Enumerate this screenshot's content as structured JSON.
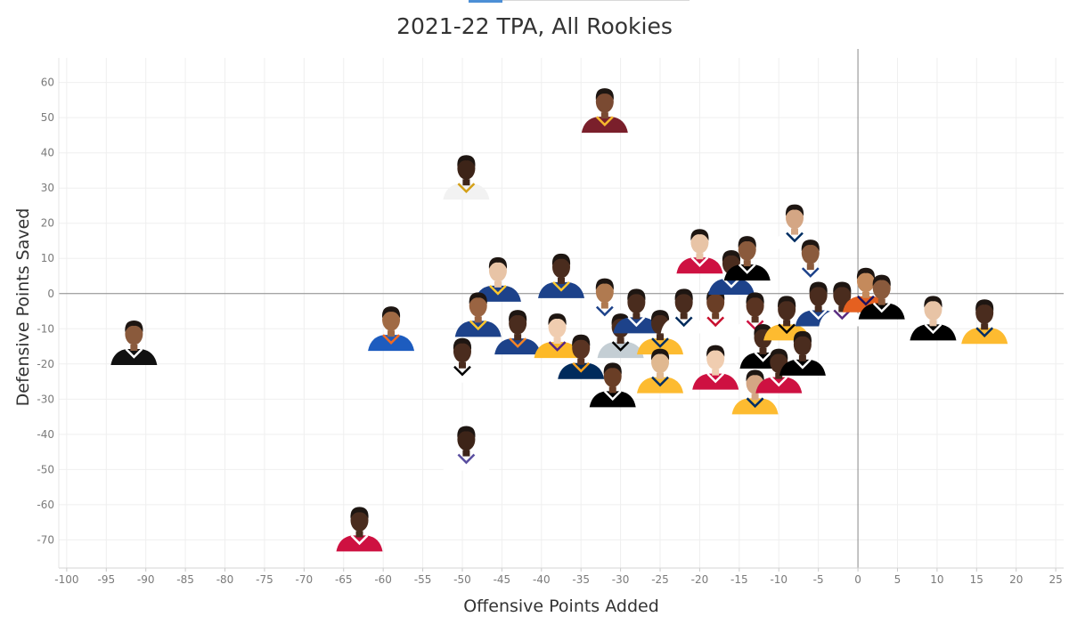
{
  "chart_data": {
    "type": "scatter",
    "title": "2021-22 TPA, All Rookies",
    "xlabel": "Offensive Points Added",
    "ylabel": "Defensive Points Saved",
    "xlim": [
      -101,
      26
    ],
    "ylim": [
      -78,
      67
    ],
    "xticks": [
      -100,
      -95,
      -90,
      -85,
      -80,
      -75,
      -70,
      -65,
      -60,
      -55,
      -50,
      -45,
      -40,
      -35,
      -30,
      -25,
      -20,
      -15,
      -10,
      -5,
      0,
      5,
      10,
      15,
      20,
      25
    ],
    "yticks": [
      -70,
      -60,
      -50,
      -40,
      -30,
      -20,
      -10,
      0,
      10,
      20,
      30,
      40,
      50,
      60
    ],
    "grid": true,
    "reference_lines": {
      "x": 0,
      "y": 0
    },
    "marker": "player headshot",
    "points": [
      {
        "x": -32,
        "y": 50,
        "skin": "#7a4a32",
        "jersey": "#7a1f2b",
        "trim": "#f5b82e"
      },
      {
        "x": -49.5,
        "y": 31,
        "skin": "#3d2418",
        "jersey": "#f2f2f2",
        "trim": "#d4a017"
      },
      {
        "x": -91.5,
        "y": -16,
        "skin": "#8a5a3c",
        "jersey": "#111111",
        "trim": "#ffffff"
      },
      {
        "x": -59,
        "y": -12,
        "skin": "#a06a44",
        "jersey": "#1d5cbf",
        "trim": "#f26a21"
      },
      {
        "x": -49.5,
        "y": -46,
        "skin": "#3d2418",
        "jersey": "#ffffff",
        "trim": "#5a4fa0"
      },
      {
        "x": -63,
        "y": -69,
        "skin": "#4a2c1e",
        "jersey": "#ce1141",
        "trim": "#ffffff"
      },
      {
        "x": -50,
        "y": -21,
        "skin": "#4a2c1e",
        "jersey": "#ffffff",
        "trim": "#000000"
      },
      {
        "x": -45.5,
        "y": 2,
        "skin": "#e8c4a6",
        "jersey": "#1d428a",
        "trim": "#ffc72c"
      },
      {
        "x": -48,
        "y": -8,
        "skin": "#9a6442",
        "jersey": "#1d428a",
        "trim": "#ffc72c"
      },
      {
        "x": -43,
        "y": -13,
        "skin": "#4a2c1e",
        "jersey": "#1d428a",
        "trim": "#f58426"
      },
      {
        "x": -37.5,
        "y": 3,
        "skin": "#4a2c1e",
        "jersey": "#1d428a",
        "trim": "#ffc72c"
      },
      {
        "x": -38,
        "y": -14,
        "skin": "#f0cdb0",
        "jersey": "#fdb927",
        "trim": "#552583"
      },
      {
        "x": -35,
        "y": -20,
        "skin": "#5a3422",
        "jersey": "#002b5c",
        "trim": "#f9a01b"
      },
      {
        "x": -32,
        "y": -4,
        "skin": "#b07a50",
        "jersey": "#ffffff",
        "trim": "#1d428a"
      },
      {
        "x": -30,
        "y": -14,
        "skin": "#4a2c1e",
        "jersey": "#c4ced4",
        "trim": "#000000"
      },
      {
        "x": -31,
        "y": -28,
        "skin": "#6a3e26",
        "jersey": "#000000",
        "trim": "#ffffff"
      },
      {
        "x": -28,
        "y": -7,
        "skin": "#4a2c1e",
        "jersey": "#1d428a",
        "trim": "#ffffff"
      },
      {
        "x": -25,
        "y": -13,
        "skin": "#4a2c1e",
        "jersey": "#fdbb30",
        "trim": "#002d62"
      },
      {
        "x": -25,
        "y": -24,
        "skin": "#e0b890",
        "jersey": "#fdbb30",
        "trim": "#002d62"
      },
      {
        "x": -22,
        "y": -7,
        "skin": "#4a2c1e",
        "jersey": "#ffffff",
        "trim": "#002b5c"
      },
      {
        "x": -20,
        "y": 10,
        "skin": "#e8c4a6",
        "jersey": "#ce1141",
        "trim": "#ffffff"
      },
      {
        "x": -18,
        "y": -23,
        "skin": "#f0cdb0",
        "jersey": "#ce1141",
        "trim": "#ffffff"
      },
      {
        "x": -18,
        "y": -7,
        "skin": "#6a3e26",
        "jersey": "#ffffff",
        "trim": "#c8102e"
      },
      {
        "x": -16,
        "y": 4,
        "skin": "#4a2c1e",
        "jersey": "#1d428a",
        "trim": "#ffffff"
      },
      {
        "x": -14,
        "y": 8,
        "skin": "#8a5a3c",
        "jersey": "#000000",
        "trim": "#ffffff"
      },
      {
        "x": -13,
        "y": -8,
        "skin": "#5a3422",
        "jersey": "#ffffff",
        "trim": "#ce1141"
      },
      {
        "x": -13,
        "y": -30,
        "skin": "#d4a684",
        "jersey": "#fdbb30",
        "trim": "#002d62"
      },
      {
        "x": -12,
        "y": -17,
        "skin": "#4a2c1e",
        "jersey": "#000000",
        "trim": "#ffffff"
      },
      {
        "x": -10,
        "y": -24,
        "skin": "#4a2c1e",
        "jersey": "#ce1141",
        "trim": "#ffffff"
      },
      {
        "x": -9,
        "y": -9,
        "skin": "#4a2c1e",
        "jersey": "#fdbb30",
        "trim": "#000000"
      },
      {
        "x": -8,
        "y": 17,
        "skin": "#d4a684",
        "jersey": "#ffffff",
        "trim": "#002d62"
      },
      {
        "x": -7,
        "y": -19,
        "skin": "#4a2c1e",
        "jersey": "#000000",
        "trim": "#ffffff"
      },
      {
        "x": -6,
        "y": 7,
        "skin": "#8a5a3c",
        "jersey": "#ffffff",
        "trim": "#1d428a"
      },
      {
        "x": -5,
        "y": -5,
        "skin": "#4a2c1e",
        "jersey": "#1d428a",
        "trim": "#ffffff"
      },
      {
        "x": -2,
        "y": -5,
        "skin": "#4a2c1e",
        "jersey": "#ffffff",
        "trim": "#5a2d81"
      },
      {
        "x": 1,
        "y": -1,
        "skin": "#c48a5c",
        "jersey": "#e56020",
        "trim": "#1d1160"
      },
      {
        "x": 3,
        "y": -3,
        "skin": "#8a5a3c",
        "jersey": "#000000",
        "trim": "#ffffff"
      },
      {
        "x": 9.5,
        "y": -9,
        "skin": "#e8c4a6",
        "jersey": "#000000",
        "trim": "#ffffff"
      },
      {
        "x": 16,
        "y": -10,
        "skin": "#4a2c1e",
        "jersey": "#fdbb30",
        "trim": "#002d62"
      }
    ]
  }
}
